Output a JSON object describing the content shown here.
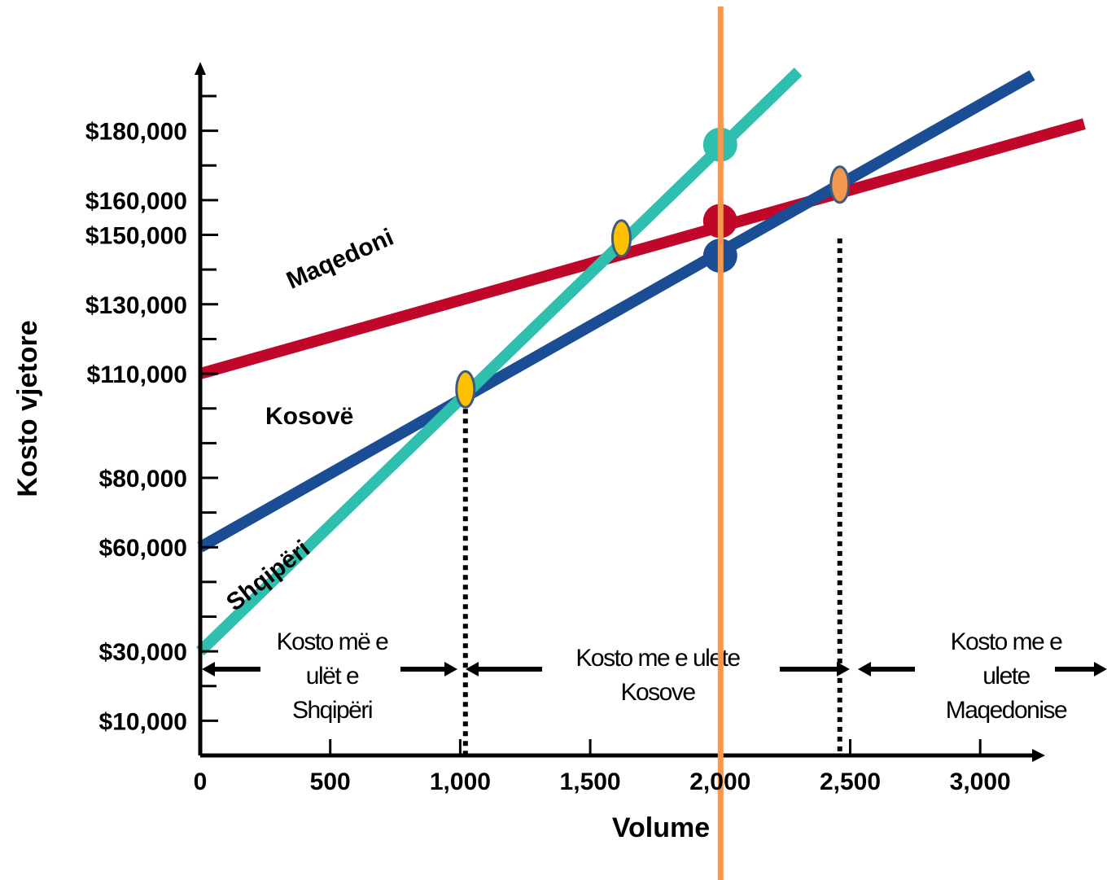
{
  "chart_data": {
    "type": "line",
    "title": "",
    "xlabel": "Volume",
    "ylabel": "Kosto vjetore",
    "xlim": [
      0,
      3200
    ],
    "ylim": [
      0,
      200000
    ],
    "x_ticks": [
      {
        "value": 0,
        "label": "0"
      },
      {
        "value": 500,
        "label": "500"
      },
      {
        "value": 1000,
        "label": "1,000"
      },
      {
        "value": 1500,
        "label": "1,500"
      },
      {
        "value": 2000,
        "label": "2,000"
      },
      {
        "value": 2500,
        "label": "2,500"
      },
      {
        "value": 3000,
        "label": "3,000"
      }
    ],
    "y_ticks": [
      {
        "value": 10000,
        "label": "$10,000"
      },
      {
        "value": 30000,
        "label": "$30,000"
      },
      {
        "value": 60000,
        "label": "$60,000"
      },
      {
        "value": 80000,
        "label": "$80,000"
      },
      {
        "value": 110000,
        "label": "$110,000"
      },
      {
        "value": 130000,
        "label": "$130,000"
      },
      {
        "value": 150000,
        "label": "$150,000"
      },
      {
        "value": 160000,
        "label": "$160,000"
      },
      {
        "value": 180000,
        "label": "$180,000"
      }
    ],
    "series": [
      {
        "name": "Maqedoni",
        "color": "#c0072a",
        "x": [
          0,
          3400
        ],
        "y": [
          110000,
          182000
        ],
        "label_at": [
          550,
          141000
        ],
        "label_angle": -24
      },
      {
        "name": "Kosovë",
        "color": "#1a4d94",
        "x": [
          0,
          3200
        ],
        "y": [
          60000,
          196000
        ],
        "label_at": [
          420,
          95500
        ],
        "label_angle": 0
      },
      {
        "name": "Shqipëri",
        "color": "#2ebfae",
        "x": [
          0,
          2300
        ],
        "y": [
          30000,
          197000
        ],
        "label_at": [
          280,
          50000
        ],
        "label_angle": -38
      }
    ],
    "intersections": [
      {
        "x": 1020,
        "y": 105500,
        "color": "#ffc000"
      },
      {
        "x": 1620,
        "y": 149000,
        "color": "#ffc000"
      },
      {
        "x": 2460,
        "y": 164500,
        "color": "#f4974f"
      }
    ],
    "markers_at_2000": [
      {
        "y": 176000,
        "color": "#2ebfae"
      },
      {
        "y": 154000,
        "color": "#c0072a"
      },
      {
        "y": 144000,
        "color": "#1a4d94"
      }
    ],
    "dotted_lines_x": [
      1020,
      2460
    ],
    "vertical_line": {
      "x": 2000,
      "color": "#f4974f"
    },
    "regions": [
      {
        "lines": [
          "Kosto më e",
          "ulët e",
          "Shqipëri"
        ],
        "x_from": 0,
        "x_to": 1020
      },
      {
        "lines": [
          "Kosto me e ulete",
          "Kosove"
        ],
        "x_from": 1020,
        "x_to": 2460
      },
      {
        "lines": [
          "Kosto me e",
          "ulete",
          "Maqedonise"
        ],
        "x_from": 2460,
        "x_to": 3500
      }
    ]
  }
}
